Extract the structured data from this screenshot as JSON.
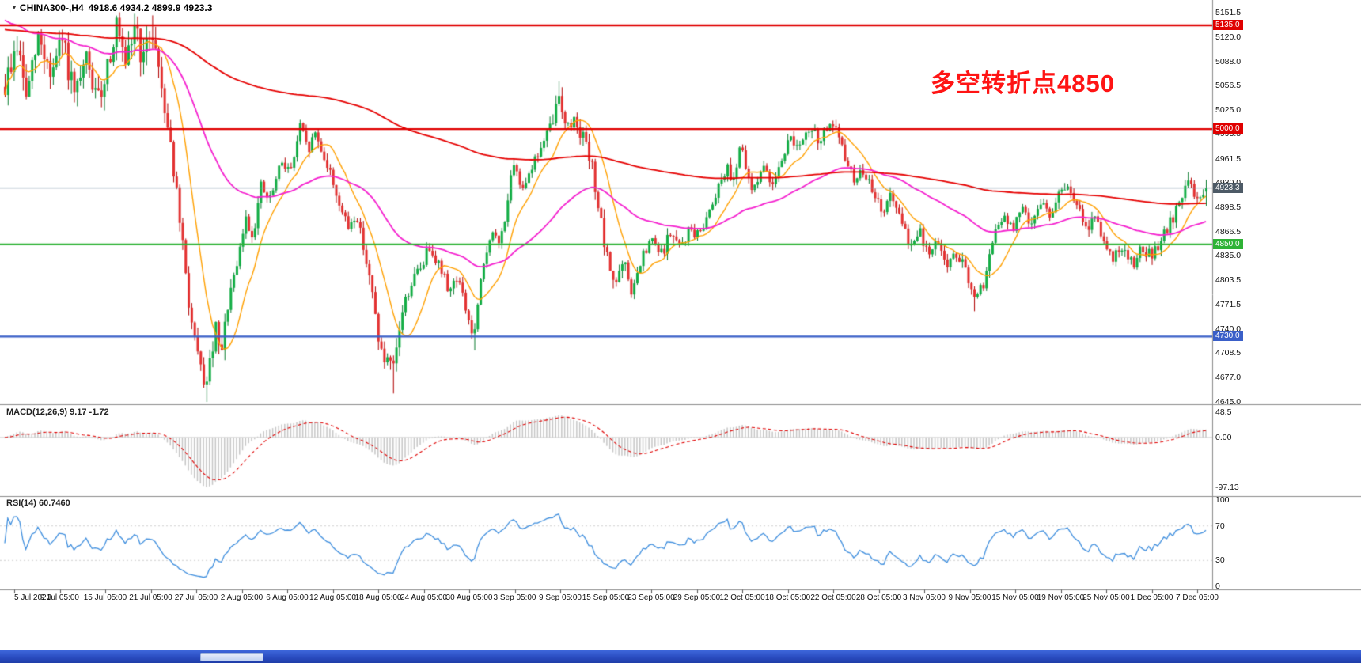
{
  "window": {
    "symbol": "CHINA300-,H4",
    "ohlc_values": "4918.6 4934.2 4899.9 4923.3"
  },
  "annotation": {
    "text": "多空转折点4850",
    "color": "#ff1414"
  },
  "colors": {
    "up": "#12ad44",
    "up_border": "#067a2c",
    "down": "#e33030",
    "down_border": "#b00000",
    "ma_fast": "#ffa000",
    "ma_mid": "#f520cf",
    "ma_slow": "#e60000",
    "level_red": "#e00000",
    "level_green": "#2eb235",
    "level_blue": "#3a5fc8",
    "current_line": "#7a93a8",
    "macd_hist": "#c6c6c6",
    "macd_signal": "#e00000",
    "rsi_line": "#3E8EDE",
    "separator": "#8c8c8c",
    "axis_text": "#111111"
  },
  "price_axis": {
    "max": 5151.5,
    "min": 4645.0,
    "ticks": [
      "5151.5",
      "5120.0",
      "5088.0",
      "5056.5",
      "5025.0",
      "4993.5",
      "4961.5",
      "4930.0",
      "4898.5",
      "4866.5",
      "4835.0",
      "4803.5",
      "4771.5",
      "4740.0",
      "4708.5",
      "4677.0",
      "4645.0"
    ]
  },
  "levels": [
    {
      "price": 5135.0,
      "label": "5135.0",
      "color": "#e00000",
      "badge": "#e00000",
      "width": 2.4
    },
    {
      "price": 5000.0,
      "label": "5000.0",
      "color": "#e00000",
      "badge": "#e00000",
      "width": 2.4
    },
    {
      "price": 4923.3,
      "label": "4923.3",
      "color": "#7a93a8",
      "badge": "#4d5a66",
      "width": 1
    },
    {
      "price": 4850.0,
      "label": "4850.0",
      "color": "#2eb235",
      "badge": "#2eb235",
      "width": 2.2
    },
    {
      "price": 4730.0,
      "label": "4730.0",
      "color": "#3a5fc8",
      "badge": "#3a5fc8",
      "width": 2.2
    }
  ],
  "macd": {
    "label": "MACD(12,26,9) 9.17 -1.72",
    "ticks": [
      {
        "v": 48.5,
        "label": "48.5"
      },
      {
        "v": 0,
        "label": "0.00"
      },
      {
        "v": -97.13,
        "label": "-97.13"
      }
    ]
  },
  "rsi": {
    "label": "RSI(14) 60.7460",
    "ticks": [
      {
        "v": 100,
        "label": "100"
      },
      {
        "v": 70,
        "label": "70"
      },
      {
        "v": 30,
        "label": "30"
      },
      {
        "v": 0,
        "label": "0"
      }
    ],
    "guide_levels": [
      70,
      30
    ]
  },
  "time_axis": {
    "labels": [
      "5 Jul 2021",
      "9 Jul 05:00",
      "15 Jul 05:00",
      "21 Jul 05:00",
      "27 Jul 05:00",
      "2 Aug 05:00",
      "6 Aug 05:00",
      "12 Aug 05:00",
      "18 Aug 05:00",
      "24 Aug 05:00",
      "30 Aug 05:00",
      "3 Sep 05:00",
      "9 Sep 05:00",
      "15 Sep 05:00",
      "23 Sep 05:00",
      "29 Sep 05:00",
      "12 Oct 05:00",
      "18 Oct 05:00",
      "22 Oct 05:00",
      "28 Oct 05:00",
      "3 Nov 05:00",
      "9 Nov 05:00",
      "15 Nov 05:00",
      "19 Nov 05:00",
      "25 Nov 05:00",
      "1 Dec 05:00",
      "7 Dec 05:00"
    ]
  },
  "chart_data": {
    "type": "candlestick",
    "symbol": "CHINA300",
    "timeframe": "H4",
    "title": "CHINA300-,H4",
    "last_ohlc": {
      "open": 4918.6,
      "high": 4934.2,
      "low": 4899.9,
      "close": 4923.3
    },
    "visible_range": {
      "price_min": 4645.0,
      "price_max": 5151.5
    },
    "key_levels": [
      5135.0,
      5000.0,
      4850.0,
      4730.0
    ],
    "annotation": "多空转折点4850",
    "macd_last": {
      "macd": 9.17,
      "signal": -1.72
    },
    "rsi_last": 60.746,
    "bar_count": 400,
    "close_anchors": [
      [
        0,
        5055
      ],
      [
        0.01,
        5110
      ],
      [
        0.018,
        5040
      ],
      [
        0.028,
        5120
      ],
      [
        0.0385,
        5070
      ],
      [
        0.048,
        5115
      ],
      [
        0.058,
        5035
      ],
      [
        0.068,
        5090
      ],
      [
        0.077,
        5030
      ],
      [
        0.085,
        5085
      ],
      [
        0.093,
        5135
      ],
      [
        0.1,
        5070
      ],
      [
        0.108,
        5140
      ],
      [
        0.115,
        5085
      ],
      [
        0.122,
        5135
      ],
      [
        0.13,
        5060
      ],
      [
        0.138,
        4980
      ],
      [
        0.146,
        4870
      ],
      [
        0.154,
        4760
      ],
      [
        0.16,
        4700
      ],
      [
        0.168,
        4665
      ],
      [
        0.175,
        4740
      ],
      [
        0.18,
        4700
      ],
      [
        0.186,
        4780
      ],
      [
        0.192,
        4810
      ],
      [
        0.2,
        4885
      ],
      [
        0.206,
        4860
      ],
      [
        0.213,
        4925
      ],
      [
        0.22,
        4905
      ],
      [
        0.231,
        4960
      ],
      [
        0.238,
        4945
      ],
      [
        0.246,
        5005
      ],
      [
        0.252,
        4970
      ],
      [
        0.258,
        4995
      ],
      [
        0.269,
        4950
      ],
      [
        0.278,
        4905
      ],
      [
        0.285,
        4870
      ],
      [
        0.292,
        4890
      ],
      [
        0.299,
        4845
      ],
      [
        0.308,
        4760
      ],
      [
        0.314,
        4700
      ],
      [
        0.3235,
        4685
      ],
      [
        0.33,
        4760
      ],
      [
        0.338,
        4800
      ],
      [
        0.346,
        4820
      ],
      [
        0.354,
        4850
      ],
      [
        0.362,
        4820
      ],
      [
        0.37,
        4790
      ],
      [
        0.3765,
        4810
      ],
      [
        0.39,
        4725
      ],
      [
        0.397,
        4810
      ],
      [
        0.404,
        4865
      ],
      [
        0.412,
        4850
      ],
      [
        0.423,
        4950
      ],
      [
        0.43,
        4925
      ],
      [
        0.438,
        4950
      ],
      [
        0.446,
        4975
      ],
      [
        0.454,
        5000
      ],
      [
        0.4615,
        5045
      ],
      [
        0.468,
        5000
      ],
      [
        0.475,
        5015
      ],
      [
        0.482,
        4985
      ],
      [
        0.49,
        4940
      ],
      [
        0.5,
        4835
      ],
      [
        0.508,
        4800
      ],
      [
        0.515,
        4825
      ],
      [
        0.522,
        4785
      ],
      [
        0.53,
        4830
      ],
      [
        0.5385,
        4855
      ],
      [
        0.546,
        4835
      ],
      [
        0.554,
        4865
      ],
      [
        0.562,
        4845
      ],
      [
        0.57,
        4870
      ],
      [
        0.577,
        4860
      ],
      [
        0.585,
        4890
      ],
      [
        0.592,
        4920
      ],
      [
        0.6,
        4950
      ],
      [
        0.607,
        4935
      ],
      [
        0.612,
        4985
      ],
      [
        0.6155,
        4950
      ],
      [
        0.622,
        4920
      ],
      [
        0.63,
        4950
      ],
      [
        0.638,
        4930
      ],
      [
        0.646,
        4960
      ],
      [
        0.654,
        4990
      ],
      [
        0.662,
        4975
      ],
      [
        0.67,
        5000
      ],
      [
        0.678,
        4985
      ],
      [
        0.685,
        5005
      ],
      [
        0.692,
        4995
      ],
      [
        0.7,
        4960
      ],
      [
        0.708,
        4930
      ],
      [
        0.715,
        4950
      ],
      [
        0.723,
        4910
      ],
      [
        0.731,
        4895
      ],
      [
        0.738,
        4915
      ],
      [
        0.746,
        4875
      ],
      [
        0.754,
        4850
      ],
      [
        0.762,
        4865
      ],
      [
        0.769,
        4835
      ],
      [
        0.777,
        4855
      ],
      [
        0.785,
        4820
      ],
      [
        0.793,
        4840
      ],
      [
        0.8,
        4810
      ],
      [
        0.808,
        4775
      ],
      [
        0.815,
        4800
      ],
      [
        0.823,
        4860
      ],
      [
        0.831,
        4885
      ],
      [
        0.839,
        4870
      ],
      [
        0.846,
        4895
      ],
      [
        0.854,
        4880
      ],
      [
        0.862,
        4905
      ],
      [
        0.87,
        4890
      ],
      [
        0.878,
        4915
      ],
      [
        0.885,
        4925
      ],
      [
        0.892,
        4900
      ],
      [
        0.9,
        4870
      ],
      [
        0.908,
        4885
      ],
      [
        0.916,
        4850
      ],
      [
        0.923,
        4830
      ],
      [
        0.931,
        4850
      ],
      [
        0.939,
        4825
      ],
      [
        0.947,
        4845
      ],
      [
        0.955,
        4835
      ],
      [
        0.9615,
        4850
      ],
      [
        0.969,
        4875
      ],
      [
        0.977,
        4900
      ],
      [
        0.985,
        4930
      ],
      [
        0.993,
        4912
      ],
      [
        1,
        4923.3
      ]
    ],
    "extreme_wicks": [
      {
        "f": 0.108,
        "price": 5150,
        "side": "high"
      },
      {
        "f": 0.122,
        "price": 5148,
        "side": "high"
      },
      {
        "f": 0.168,
        "price": 4645,
        "side": "low"
      },
      {
        "f": 0.246,
        "price": 5012,
        "side": "high"
      },
      {
        "f": 0.3235,
        "price": 4656,
        "side": "low"
      },
      {
        "f": 0.39,
        "price": 4712,
        "side": "low"
      },
      {
        "f": 0.4615,
        "price": 5062,
        "side": "high"
      },
      {
        "f": 0.692,
        "price": 5012,
        "side": "high"
      },
      {
        "f": 0.808,
        "price": 4763,
        "side": "low"
      },
      {
        "f": 0.985,
        "price": 4944,
        "side": "high"
      }
    ]
  }
}
